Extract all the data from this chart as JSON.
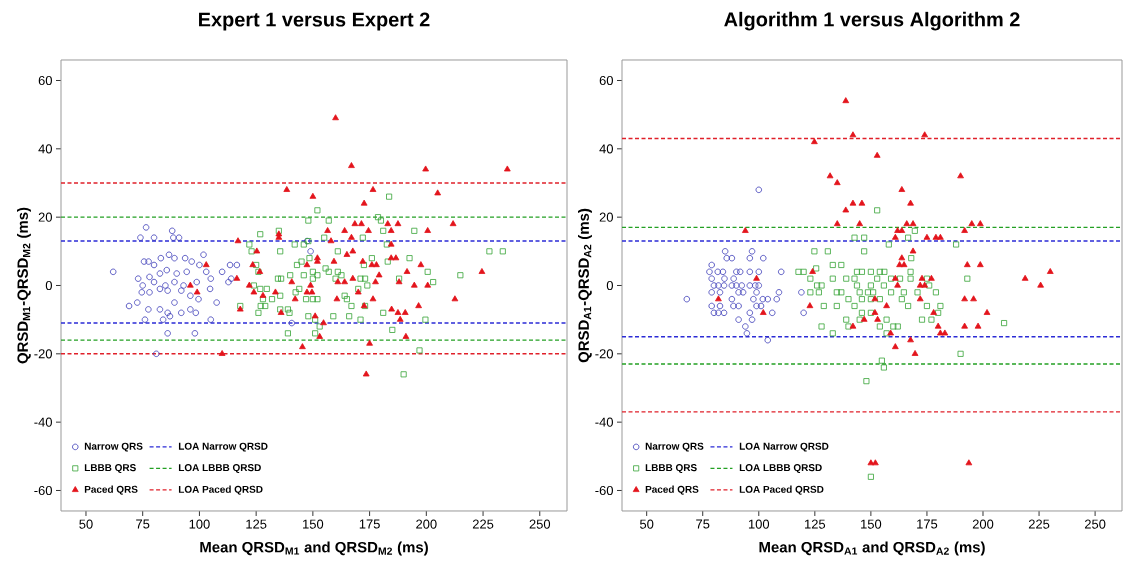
{
  "chart_data": [
    {
      "type": "scatter",
      "title": "Expert 1 versus Expert 2",
      "xlabel": "Mean QRSD$_{M1}$ and QRSD$_{M2}$ (ms)",
      "ylabel": "QRSD$_{M1}$-QRSD$_{M2}$ (ms)",
      "xlim": [
        39,
        262
      ],
      "ylim": [
        -66,
        66
      ],
      "xticks": [
        50,
        75,
        100,
        125,
        150,
        175,
        200,
        225,
        250
      ],
      "yticks": [
        -60,
        -40,
        -20,
        0,
        20,
        40,
        60
      ],
      "legend": "bottom left",
      "series": [
        {
          "name": "Narrow QRS",
          "color": "#3a3ab8",
          "marker": "circle",
          "x": [
            62,
            76.5,
            74,
            80,
            88,
            88.5,
            91,
            75.6,
            77.6,
            80,
            83,
            86.6,
            89,
            93.7,
            96.6,
            101.8,
            73,
            78,
            82.6,
            85.6,
            90,
            94.4,
            100,
            103,
            75,
            80,
            85,
            89,
            93,
            98.8,
            105,
            74.6,
            78,
            82.6,
            86,
            92,
            96,
            99.6,
            104.7,
            69,
            72.6,
            77.5,
            82.6,
            86,
            89,
            92,
            96,
            98.4,
            76,
            84,
            87,
            105,
            86,
            98,
            81,
            107.6,
            110,
            113.5,
            116.5,
            114,
            112.8,
            149,
            140.7,
            147.5
          ],
          "values": [
            4,
            17,
            14,
            14,
            16,
            14,
            14,
            7,
            7,
            6,
            8,
            9,
            8,
            8,
            7,
            9,
            2,
            2.5,
            3.5,
            4.5,
            3.5,
            4,
            6,
            4,
            0,
            1,
            0,
            1,
            0,
            1,
            2,
            -2,
            -2,
            -1,
            -1.5,
            -1.5,
            -3,
            -4,
            -1,
            -6,
            -5,
            -7,
            -7,
            -8,
            -5,
            -8,
            -7,
            -8,
            -10,
            -10,
            -9,
            -10,
            -14,
            -14,
            -20,
            -5,
            4,
            6,
            6,
            2,
            1,
            10,
            -11,
            13
          ]
        },
        {
          "name": "LBBB QRS",
          "color": "#36a336",
          "marker": "square",
          "x": [
            122,
            123,
            126.8,
            125,
            126,
            124,
            126.8,
            129.7,
            128,
            132,
            127,
            129,
            126,
            118,
            135.6,
            135,
            134.6,
            136,
            135.6,
            135.6,
            139,
            139.7,
            139,
            140,
            142.4,
            143,
            144,
            145,
            146,
            142,
            146,
            148,
            148,
            148.5,
            150,
            152,
            150,
            150,
            147,
            152,
            148,
            151,
            151,
            153,
            152,
            157,
            155,
            155.6,
            157,
            161,
            161,
            162.6,
            160,
            159,
            164,
            165,
            166,
            167,
            170,
            171,
            171,
            172,
            172.5,
            173,
            173,
            174,
            176,
            178.7,
            180,
            181,
            181,
            182.6,
            183,
            183.6,
            185,
            188,
            190,
            192.6,
            194.7,
            197,
            199.6,
            200.6,
            203,
            215,
            227.8,
            233.7
          ],
          "values": [
            12,
            10,
            15,
            6,
            4,
            0,
            -1,
            -1,
            -4,
            -4,
            -6,
            -6,
            -8,
            -6,
            10,
            16,
            2,
            2,
            -3,
            -7,
            -7,
            -8,
            -14,
            3,
            -2,
            6,
            -1,
            7,
            3,
            12,
            12,
            19,
            13,
            8,
            2,
            3,
            4,
            -4,
            -4,
            -4,
            -9,
            -10,
            -14,
            -12,
            22,
            19,
            14,
            5,
            4,
            10,
            4,
            3,
            2,
            -9,
            -3,
            -4,
            -9,
            -6,
            -1,
            2,
            -10,
            14,
            6,
            -6,
            2,
            0,
            8,
            20,
            19,
            16,
            -8,
            12,
            7,
            26,
            -13,
            2,
            -26,
            8,
            16,
            -19,
            -10,
            4,
            1,
            3,
            10,
            10
          ]
        },
        {
          "name": "Paced QRS",
          "color": "#e3141c",
          "marker": "triangle",
          "x": [
            160,
            167,
            199.7,
            235.7,
            138.5,
            176.5,
            205,
            150,
            172.6,
            168.5,
            171.4,
            183,
            187.5,
            211.8,
            156.5,
            164,
            174.5,
            184.5,
            200.6,
            135,
            135,
            167,
            117,
            158,
            184.5,
            125.3,
            167.6,
            165,
            152,
            159.3,
            184.5,
            186.6,
            103,
            123.5,
            147.4,
            152,
            172,
            176,
            178,
            197.6,
            126.6,
            191.5,
            224.5,
            116.5,
            167.6,
            179.2,
            140.7,
            161,
            164,
            177.6,
            96,
            122,
            149,
            188,
            194.7,
            200.6,
            99,
            124,
            133.5,
            147.4,
            149.6,
            170,
            128,
            142.2,
            160.6,
            176.5,
            212.6,
            118,
            136,
            172.6,
            196.6,
            184.7,
            187.5,
            190.7,
            151,
            188.5,
            153,
            191,
            145.4,
            175,
            110,
            173.5,
            154.7
          ],
          "values": [
            49,
            35,
            34,
            34,
            28,
            28,
            27,
            26,
            24,
            18,
            18,
            18,
            18,
            18,
            16,
            16,
            16,
            16,
            16,
            15,
            14,
            14,
            13,
            13,
            12,
            10,
            10,
            9,
            8,
            7,
            8,
            8,
            6,
            6,
            6,
            7,
            7,
            6,
            6,
            6,
            4,
            4,
            4,
            2,
            2,
            3,
            1,
            1,
            1,
            1,
            0,
            0,
            0,
            1,
            0,
            0,
            -2,
            -2,
            -2,
            -2,
            -2,
            -2,
            -3,
            -4,
            -4,
            -4,
            -4,
            -7,
            -8,
            -6,
            -6,
            -7,
            -8,
            -8,
            -9,
            -10,
            -15,
            -15,
            -18,
            -17,
            -20,
            -26,
            -11
          ]
        }
      ],
      "ref_lines": [
        {
          "axis": "y",
          "value": 13,
          "label": "LOA Narrow QRSD",
          "color": "#2b2bd6",
          "line_style": "dashed"
        },
        {
          "axis": "y",
          "value": -11,
          "color": "#2b2bd6",
          "line_style": "dashed"
        },
        {
          "axis": "y",
          "value": 20,
          "label": "LOA LBBB QRSD",
          "color": "#23a023",
          "line_style": "dashed"
        },
        {
          "axis": "y",
          "value": -16,
          "color": "#23a023",
          "line_style": "dashed"
        },
        {
          "axis": "y",
          "value": 30,
          "label": "LOA Paced QRSD",
          "color": "#e0202a",
          "line_style": "dashed"
        },
        {
          "axis": "y",
          "value": -20,
          "color": "#e0202a",
          "line_style": "dashed"
        }
      ]
    },
    {
      "type": "scatter",
      "title": "Algorithm 1 versus Algorithm 2",
      "xlabel": "Mean QRSD$_{A1}$ and QRSD$_{A2}$ (ms)",
      "ylabel": "QRSD$_{A1}$-QRSD$_{A2}$ (ms)",
      "xlim": [
        39,
        262
      ],
      "ylim": [
        -66,
        66
      ],
      "xticks": [
        50,
        75,
        100,
        125,
        150,
        175,
        200,
        225,
        250
      ],
      "yticks": [
        -60,
        -40,
        -20,
        0,
        20,
        40,
        60
      ],
      "legend": "bottom left",
      "series": [
        {
          "name": "Narrow QRS",
          "color": "#3a3ab8",
          "marker": "circle",
          "x": [
            67.9,
            79,
            78,
            81.7,
            84,
            79,
            84.7,
            80,
            82,
            84.5,
            88,
            90,
            92.4,
            96,
            98.4,
            100,
            79,
            82.7,
            91,
            93,
            99,
            79,
            82.7,
            80,
            82,
            84.5,
            85,
            85.7,
            88,
            88.8,
            90,
            91.7,
            88,
            88.7,
            91,
            91,
            96,
            100,
            97,
            96,
            102,
            97.6,
            99,
            101,
            96,
            97,
            94,
            94.7,
            104,
            101.8,
            104,
            106,
            108,
            109,
            110,
            100,
            119,
            120
          ],
          "values": [
            -4,
            6,
            4,
            4,
            4,
            2,
            2,
            0,
            0,
            0,
            0,
            0,
            0,
            0,
            0,
            0,
            -2,
            -2,
            -2,
            -2,
            -2,
            -6,
            -6,
            -8,
            -8,
            -8,
            10,
            8,
            8,
            2,
            4,
            4,
            -4,
            -6,
            -6,
            -10,
            4,
            4,
            10,
            8,
            8,
            -4,
            -6,
            -6,
            -8,
            -10,
            -12,
            -14,
            -16,
            -4,
            -4,
            -8,
            -4,
            -2,
            4,
            28,
            -2,
            -8
          ]
        },
        {
          "name": "LBBB QRS",
          "color": "#36a336",
          "marker": "square",
          "x": [
            117.7,
            120,
            123,
            125.6,
            123,
            126.8,
            126,
            128,
            124.8,
            130.8,
            133,
            136.8,
            133,
            129,
            128,
            134.8,
            134.8,
            136.8,
            139,
            140,
            133,
            139,
            140,
            142.7,
            142.7,
            143.8,
            146,
            142.7,
            147,
            147,
            143.8,
            145,
            146,
            145,
            146,
            150,
            150,
            150,
            148.7,
            150,
            154,
            156,
            152.8,
            155.8,
            154,
            154,
            152.8,
            151,
            148,
            154.9,
            155.8,
            157,
            157,
            158,
            159,
            159,
            160,
            162,
            163.8,
            163,
            164.7,
            166.6,
            166.6,
            167.7,
            168,
            169.6,
            170.8,
            172.8,
            175,
            175,
            176,
            177,
            179,
            180,
            181,
            188,
            190,
            193,
            209.4,
            150,
            167.7
          ],
          "values": [
            4,
            4,
            2,
            5,
            -2,
            -2,
            0,
            0,
            10,
            10,
            6,
            6,
            2,
            -6,
            -12,
            -6,
            -2,
            -2,
            2,
            -4,
            -14,
            -10,
            -12,
            2,
            -6,
            4,
            4,
            14,
            14,
            10,
            0,
            -2,
            -4,
            -10,
            -8,
            4,
            0,
            -4,
            -2,
            -8,
            4,
            4,
            2,
            0,
            -4,
            -12,
            22,
            -2,
            -28,
            -22,
            -24,
            -10,
            -14,
            12,
            2,
            -2,
            -12,
            -12,
            -4,
            2,
            -2,
            14,
            -6,
            4,
            8,
            16,
            -2,
            -10,
            -6,
            2,
            0,
            -10,
            -2,
            -8,
            -6,
            12,
            -20,
            2,
            -11,
            -56,
            2
          ]
        },
        {
          "name": "Paced QRS",
          "color": "#e3141c",
          "marker": "triangle",
          "x": [
            138.8,
            124.8,
            142,
            174,
            152.8,
            131.8,
            135,
            190,
            163.8,
            138.8,
            142,
            146,
            167.7,
            135,
            145,
            166,
            168.8,
            195,
            198.8,
            161.9,
            163.8,
            191.8,
            94,
            160.9,
            175,
            179,
            181,
            168.8,
            163.8,
            162.8,
            164.8,
            193,
            198.8,
            124,
            160.9,
            172.8,
            177,
            218.8,
            230,
            99,
            161.9,
            172,
            174,
            225.7,
            82,
            151.8,
            172,
            191.8,
            195.8,
            122.8,
            157,
            102,
            151.8,
            178,
            201.8,
            147,
            153,
            142,
            180,
            191.8,
            197.8,
            158.8,
            181,
            183,
            167.7,
            160.9,
            169.7,
            150,
            152,
            193.7
          ],
          "values": [
            54,
            42,
            44,
            44,
            38,
            32,
            30,
            32,
            28,
            22,
            24,
            24,
            24,
            18,
            18,
            18,
            18,
            18,
            18,
            16,
            16,
            16,
            16,
            14,
            14,
            14,
            14,
            10,
            8,
            6,
            6,
            6,
            6,
            4,
            2,
            2,
            2,
            2,
            4,
            2,
            0,
            0,
            0,
            0,
            -4,
            -4,
            -4,
            -4,
            -4,
            -6,
            -6,
            -8,
            -8,
            -8,
            -8,
            -10,
            -10,
            -12,
            -12,
            -12,
            -12,
            -14,
            -14,
            -14,
            -16,
            -18,
            -20,
            -52,
            -52,
            -52
          ]
        }
      ],
      "ref_lines": [
        {
          "axis": "y",
          "value": 13,
          "label": "LOA Narrow QRSD",
          "color": "#2b2bd6",
          "line_style": "dashed"
        },
        {
          "axis": "y",
          "value": -15,
          "color": "#2b2bd6",
          "line_style": "dashed"
        },
        {
          "axis": "y",
          "value": 17,
          "label": "LOA LBBB QRSD",
          "color": "#23a023",
          "line_style": "dashed"
        },
        {
          "axis": "y",
          "value": -23,
          "color": "#23a023",
          "line_style": "dashed"
        },
        {
          "axis": "y",
          "value": 43,
          "label": "LOA Paced QRSD",
          "color": "#e0202a",
          "line_style": "dashed"
        },
        {
          "axis": "y",
          "value": -37,
          "color": "#e0202a",
          "line_style": "dashed"
        }
      ]
    }
  ]
}
